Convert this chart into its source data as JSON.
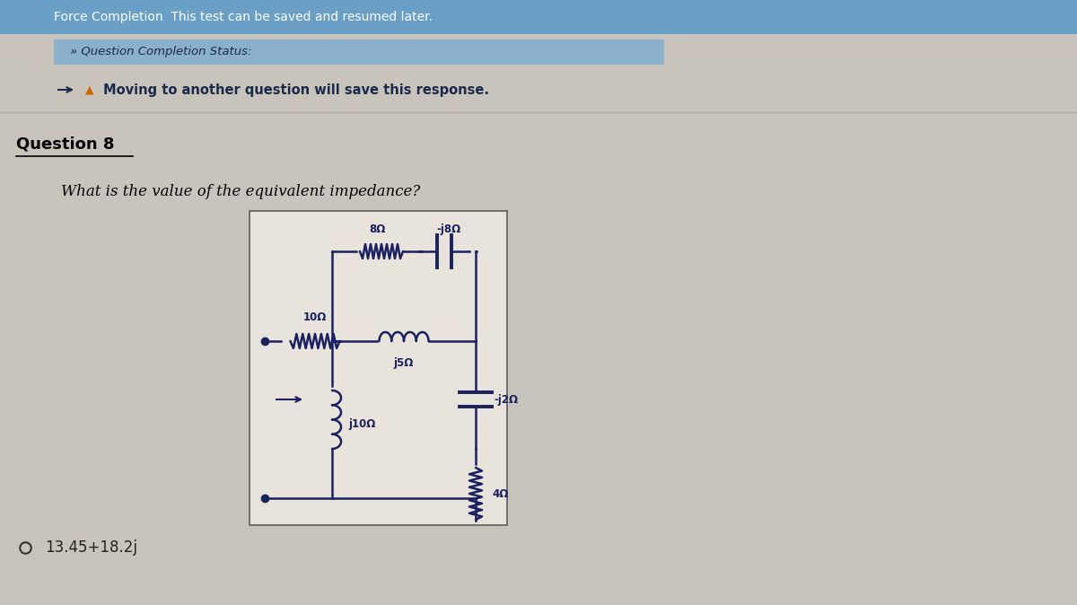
{
  "bg_color": "#c8c4bc",
  "page_bg": "#d6d2ca",
  "header_bg": "#6aA0c8",
  "header_text": "Force Completion  This test can be saved and resumed later.",
  "header_text_color": "#ffffff",
  "section_bg": "#8ab0cc",
  "section_text": "» Question Completion Status:",
  "section_text_color": "#1a2a4a",
  "warning_text": "Moving to another question will save this response.",
  "warning_text_color": "#1a2a4a",
  "question_label": "Question 8",
  "question_text": "What is the value of the equivalent impedance?",
  "answer_text": "13.45+18.2j",
  "answer_text_color": "#222222",
  "circuit_bg": "#e8e4dc",
  "circuit_border": "#555555",
  "wire_color": "#1a2060",
  "label_8ohm": "8Ω",
  "label_j8ohm": "-j8Ω",
  "label_10ohm": "10Ω",
  "label_j5ohm": "j5Ω",
  "label_j2ohm": "-j2Ω",
  "label_j10ohm": "j10Ω",
  "label_4ohm": "4Ω"
}
